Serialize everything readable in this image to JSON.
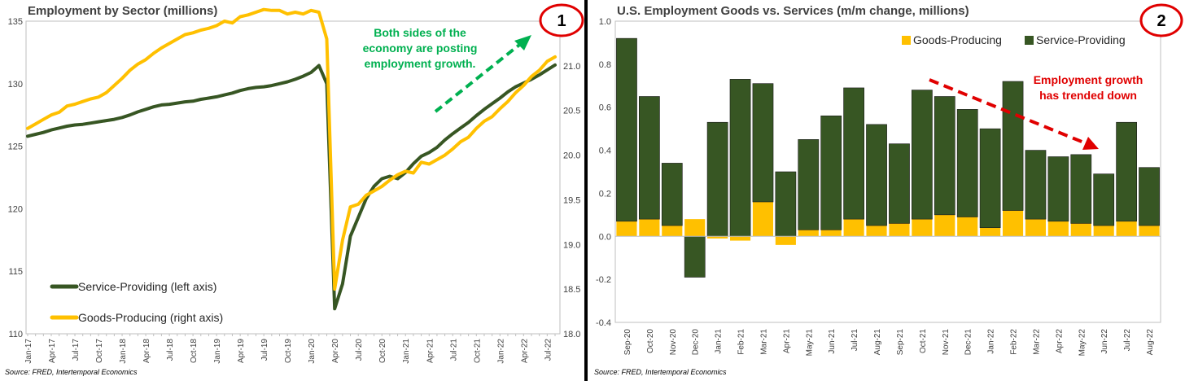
{
  "left": {
    "title": "Employment by Sector (millions)",
    "badge": "1",
    "source": "Source: FRED, Intertemporal Economics",
    "annotation": [
      "Both sides of the",
      "economy are posting",
      "employment growth."
    ],
    "legend": [
      "Service-Providing (left axis)",
      "Goods-Producing (right axis)"
    ],
    "colors": {
      "service": "#375623",
      "goods": "#FFC000",
      "annotation": "#00B050",
      "badge": "#E00000"
    }
  },
  "right": {
    "title": "U.S. Employment Goods vs. Services (m/m change, millions)",
    "badge": "2",
    "source": "Source: FRED, Intertemporal Economics",
    "annotation": [
      "Employment growth",
      "has trended down"
    ],
    "legend": [
      "Goods-Producing",
      "Service-Providing"
    ],
    "colors": {
      "service": "#375623",
      "goods": "#FFC000",
      "annotation": "#E00000",
      "badge": "#E00000"
    }
  },
  "chart_data": [
    {
      "type": "line",
      "title": "Employment by Sector (millions)",
      "x": [
        "Jan-17",
        "Feb-17",
        "Mar-17",
        "Apr-17",
        "May-17",
        "Jun-17",
        "Jul-17",
        "Aug-17",
        "Sep-17",
        "Oct-17",
        "Nov-17",
        "Dec-17",
        "Jan-18",
        "Feb-18",
        "Mar-18",
        "Apr-18",
        "May-18",
        "Jun-18",
        "Jul-18",
        "Aug-18",
        "Sep-18",
        "Oct-18",
        "Nov-18",
        "Dec-18",
        "Jan-19",
        "Feb-19",
        "Mar-19",
        "Apr-19",
        "May-19",
        "Jun-19",
        "Jul-19",
        "Aug-19",
        "Sep-19",
        "Oct-19",
        "Nov-19",
        "Dec-19",
        "Jan-20",
        "Feb-20",
        "Mar-20",
        "Apr-20",
        "May-20",
        "Jun-20",
        "Jul-20",
        "Aug-20",
        "Sep-20",
        "Oct-20",
        "Nov-20",
        "Dec-20",
        "Jan-21",
        "Feb-21",
        "Mar-21",
        "Apr-21",
        "May-21",
        "Jun-21",
        "Jul-21",
        "Aug-21",
        "Sep-21",
        "Oct-21",
        "Nov-21",
        "Dec-21",
        "Jan-22",
        "Feb-22",
        "Mar-22",
        "Apr-22",
        "May-22",
        "Jun-22",
        "Jul-22",
        "Aug-22"
      ],
      "tick_labels": [
        "Jan-17",
        "Apr-17",
        "Jul-17",
        "Oct-17",
        "Jan-18",
        "Apr-18",
        "Jul-18",
        "Oct-18",
        "Jan-19",
        "Apr-19",
        "Jul-19",
        "Oct-19",
        "Jan-20",
        "Apr-20",
        "Jul-20",
        "Oct-20",
        "Jan-21",
        "Apr-21",
        "Jul-21",
        "Oct-21",
        "Jan-22",
        "Apr-22",
        "Jul-22"
      ],
      "series": [
        {
          "name": "Service-Providing (left axis)",
          "axis": "left",
          "values": [
            125.8,
            125.95,
            126.1,
            126.3,
            126.45,
            126.6,
            126.7,
            126.75,
            126.85,
            126.95,
            127.05,
            127.15,
            127.3,
            127.5,
            127.75,
            127.95,
            128.15,
            128.3,
            128.35,
            128.45,
            128.55,
            128.6,
            128.75,
            128.85,
            128.95,
            129.1,
            129.25,
            129.45,
            129.6,
            129.7,
            129.75,
            129.85,
            130.0,
            130.15,
            130.35,
            130.6,
            130.9,
            131.45,
            130.0,
            112.0,
            114.0,
            117.8,
            119.3,
            120.8,
            121.8,
            122.4,
            122.6,
            122.4,
            122.9,
            123.6,
            124.2,
            124.5,
            124.9,
            125.5,
            126.0,
            126.45,
            126.9,
            127.45,
            127.95,
            128.4,
            128.85,
            129.35,
            129.75,
            130.05,
            130.35,
            130.7,
            131.1,
            131.5
          ]
        },
        {
          "name": "Goods-Producing (right axis)",
          "axis": "right",
          "values": [
            20.3,
            20.35,
            20.4,
            20.45,
            20.48,
            20.55,
            20.57,
            20.6,
            20.63,
            20.65,
            20.7,
            20.78,
            20.86,
            20.95,
            21.02,
            21.07,
            21.14,
            21.2,
            21.25,
            21.3,
            21.35,
            21.37,
            21.4,
            21.42,
            21.45,
            21.5,
            21.48,
            21.55,
            21.57,
            21.6,
            21.63,
            21.62,
            21.62,
            21.58,
            21.6,
            21.58,
            21.62,
            21.6,
            21.3,
            18.5,
            19.05,
            19.42,
            19.45,
            19.55,
            19.6,
            19.65,
            19.72,
            19.78,
            19.82,
            19.8,
            19.92,
            19.9,
            19.95,
            20.0,
            20.07,
            20.15,
            20.2,
            20.3,
            20.38,
            20.43,
            20.52,
            20.6,
            20.7,
            20.78,
            20.88,
            20.95,
            21.05,
            21.1
          ]
        }
      ],
      "ylim_left": [
        110,
        135
      ],
      "ylim_right": [
        18.0,
        21.5
      ],
      "yticks_left": [
        110,
        115,
        120,
        125,
        130,
        135
      ],
      "yticks_right": [
        "18.0",
        "18.5",
        "19.0",
        "19.5",
        "20.0",
        "20.5",
        "21.0"
      ],
      "legend_position": "bottom-left",
      "grid": false
    },
    {
      "type": "bar",
      "stacked": true,
      "title": "U.S. Employment Goods vs. Services (m/m change, millions)",
      "categories": [
        "Sep-20",
        "Oct-20",
        "Nov-20",
        "Dec-20",
        "Jan-21",
        "Feb-21",
        "Mar-21",
        "Apr-21",
        "May-21",
        "Jun-21",
        "Jul-21",
        "Aug-21",
        "Sep-21",
        "Oct-21",
        "Nov-21",
        "Dec-21",
        "Jan-22",
        "Feb-22",
        "Mar-22",
        "Apr-22",
        "May-22",
        "Jun-22",
        "Jul-22",
        "Aug-22"
      ],
      "series": [
        {
          "name": "Goods-Producing",
          "values": [
            0.07,
            0.08,
            0.05,
            0.08,
            -0.01,
            -0.02,
            0.16,
            -0.04,
            0.03,
            0.03,
            0.08,
            0.05,
            0.06,
            0.08,
            0.1,
            0.09,
            0.04,
            0.12,
            0.08,
            0.07,
            0.06,
            0.05,
            0.07,
            0.05
          ]
        },
        {
          "name": "Service-Providing",
          "values": [
            0.85,
            0.57,
            0.29,
            -0.19,
            0.53,
            0.73,
            0.55,
            0.3,
            0.42,
            0.53,
            0.61,
            0.47,
            0.37,
            0.6,
            0.55,
            0.5,
            0.46,
            0.6,
            0.32,
            0.3,
            0.32,
            0.24,
            0.46,
            0.27
          ]
        }
      ],
      "ylim": [
        -0.4,
        1.0
      ],
      "yticks": [
        "-0.4",
        "-0.2",
        "0.0",
        "0.2",
        "0.4",
        "0.6",
        "0.8",
        "1.0"
      ],
      "legend_position": "top-right",
      "grid": false
    }
  ]
}
